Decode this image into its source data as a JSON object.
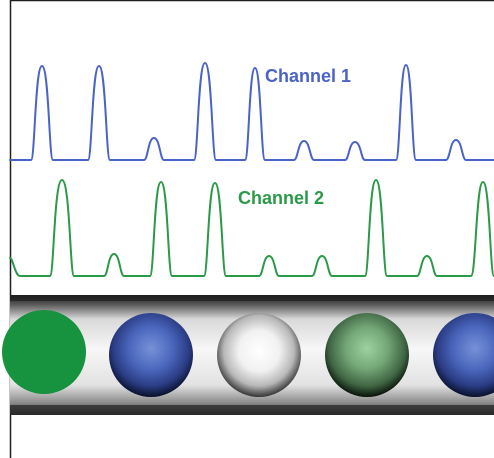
{
  "channels": [
    {
      "label": "Channel 1",
      "color": "#4a63c8"
    },
    {
      "label": "Channel 2",
      "color": "#2a9a48"
    }
  ],
  "particles": [
    {
      "kind": "green-solid",
      "color": "#17923f"
    },
    {
      "kind": "blue",
      "color": "#4c6bbd"
    },
    {
      "kind": "white",
      "color": "#f3f3f3"
    },
    {
      "kind": "green-gradient",
      "color": "#74a87a"
    },
    {
      "kind": "blue",
      "color": "#4c6bbd"
    }
  ],
  "colors": {
    "background": "#ffffff",
    "frame": "#1f1f1f",
    "tube_dark": "#2a2a2a",
    "tube_light": "#e8e8e8"
  }
}
